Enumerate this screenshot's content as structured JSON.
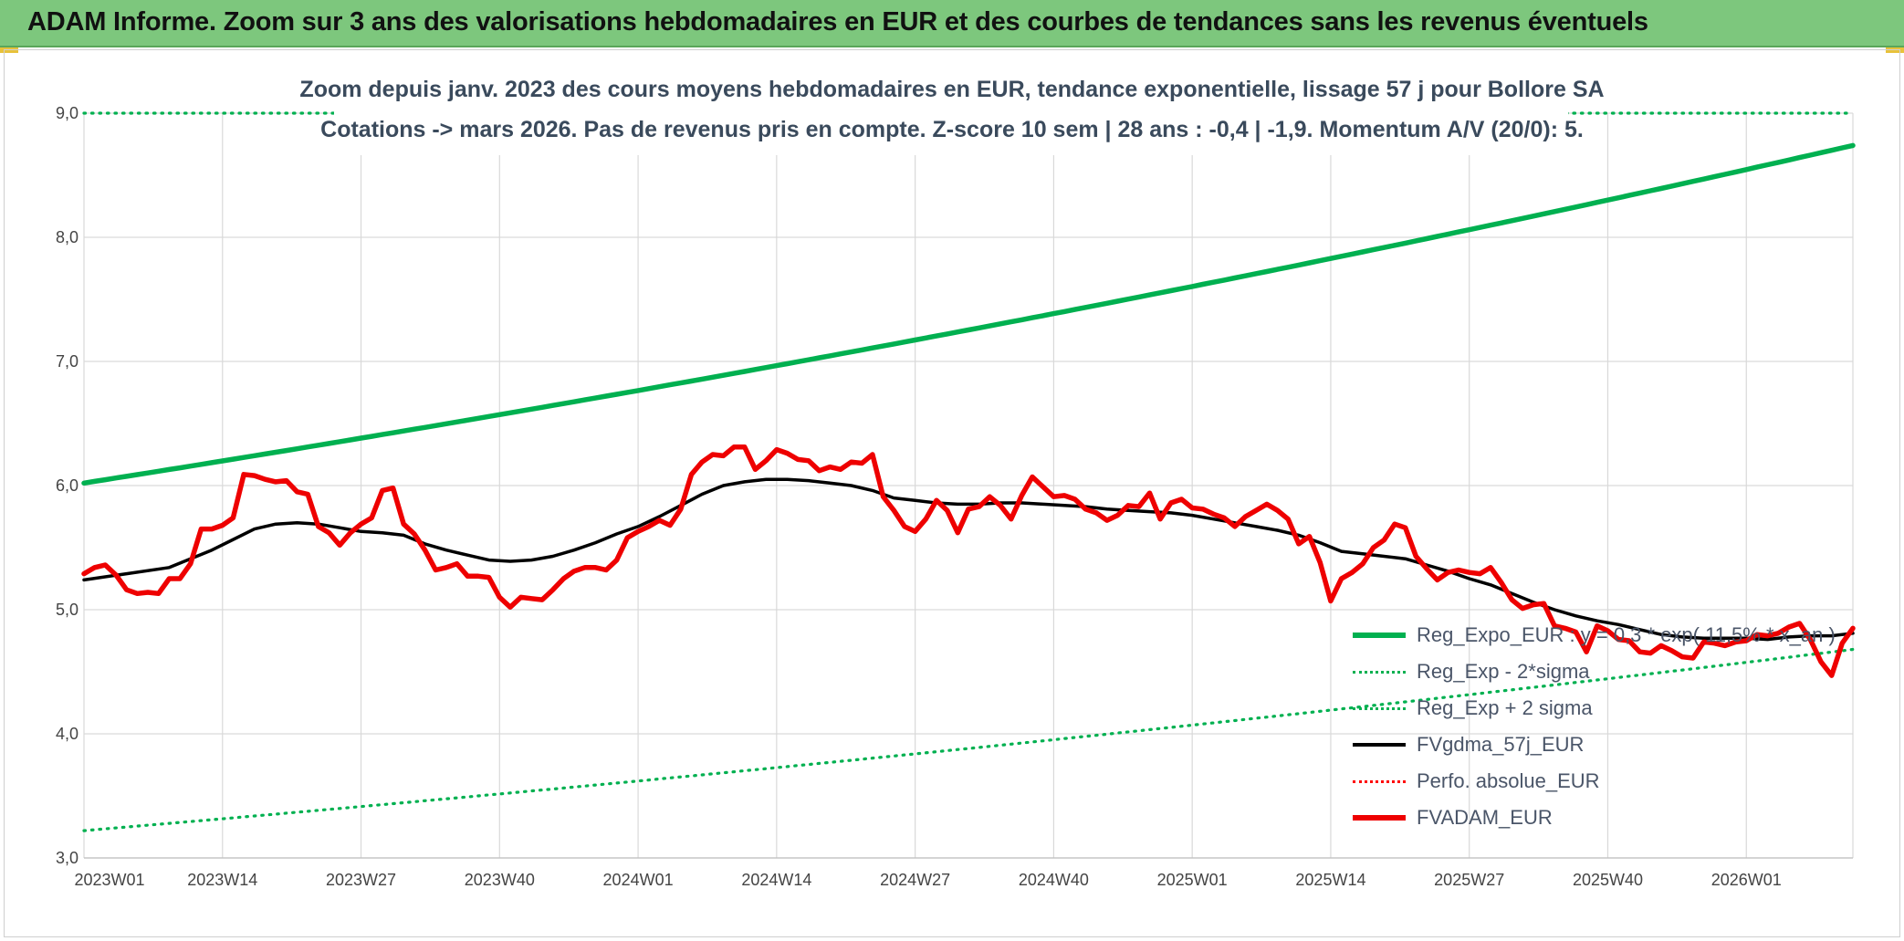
{
  "banner": {
    "title": "ADAM Informe. Zoom sur 3 ans des valorisations hebdomadaires en EUR et des courbes de tendances sans les revenus éventuels"
  },
  "chart_data": {
    "type": "line",
    "title_line1": "Zoom depuis janv. 2023 des cours moyens hebdomadaires en EUR, tendance exponentielle, lissage 57 j pour Bollore SA",
    "title_line2": "Cotations -> mars 2026. Pas de revenus pris en compte. Z-score 10 sem | 28 ans : -0,4 | -1,9. Momentum A/V (20/0): 5.",
    "ylim": [
      3.0,
      9.0
    ],
    "yticks": [
      "3,0",
      "4,0",
      "5,0",
      "6,0",
      "7,0",
      "8,0",
      "9,0"
    ],
    "x_range": [
      0,
      166
    ],
    "xticks": [
      {
        "index": 0,
        "label": "2023W01"
      },
      {
        "index": 13,
        "label": "2023W14"
      },
      {
        "index": 26,
        "label": "2023W27"
      },
      {
        "index": 39,
        "label": "2023W40"
      },
      {
        "index": 52,
        "label": "2024W01"
      },
      {
        "index": 65,
        "label": "2024W14"
      },
      {
        "index": 78,
        "label": "2024W27"
      },
      {
        "index": 91,
        "label": "2024W40"
      },
      {
        "index": 104,
        "label": "2025W01"
      },
      {
        "index": 117,
        "label": "2025W14"
      },
      {
        "index": 130,
        "label": "2025W27"
      },
      {
        "index": 143,
        "label": "2025W40"
      },
      {
        "index": 156,
        "label": "2026W01"
      }
    ],
    "grid": true,
    "legend_position": "bottom-right",
    "series": [
      {
        "name": "Reg_Expo_EUR : y = 0,3 * exp( 11,5% * x_an )",
        "color": "#00b050",
        "style": "solid-thick",
        "x": [
          0,
          166
        ],
        "y_start": 6.02,
        "y_end": 8.74,
        "shape": "exponential"
      },
      {
        "name": "Reg_Exp - 2*sigma",
        "color": "#00b050",
        "style": "dotted",
        "x": [
          0,
          166
        ],
        "y_start": 3.22,
        "y_end": 4.68,
        "shape": "exponential"
      },
      {
        "name": "Reg_Exp + 2 sigma",
        "color": "#00b050",
        "style": "dotted",
        "x": [
          0,
          166
        ],
        "y": [
          9.0,
          9.0
        ]
      },
      {
        "name": "FVgdma_57j_EUR",
        "color": "#000000",
        "style": "solid",
        "points": [
          [
            0,
            5.24
          ],
          [
            4,
            5.29
          ],
          [
            8,
            5.34
          ],
          [
            12,
            5.48
          ],
          [
            16,
            5.65
          ],
          [
            18,
            5.69
          ],
          [
            20,
            5.7
          ],
          [
            22,
            5.69
          ],
          [
            24,
            5.66
          ],
          [
            26,
            5.63
          ],
          [
            28,
            5.62
          ],
          [
            30,
            5.6
          ],
          [
            32,
            5.53
          ],
          [
            34,
            5.48
          ],
          [
            36,
            5.44
          ],
          [
            38,
            5.4
          ],
          [
            40,
            5.39
          ],
          [
            42,
            5.4
          ],
          [
            44,
            5.43
          ],
          [
            46,
            5.48
          ],
          [
            48,
            5.54
          ],
          [
            50,
            5.61
          ],
          [
            52,
            5.67
          ],
          [
            54,
            5.75
          ],
          [
            56,
            5.84
          ],
          [
            58,
            5.93
          ],
          [
            60,
            6.0
          ],
          [
            62,
            6.03
          ],
          [
            64,
            6.05
          ],
          [
            66,
            6.05
          ],
          [
            68,
            6.04
          ],
          [
            70,
            6.02
          ],
          [
            72,
            6.0
          ],
          [
            74,
            5.96
          ],
          [
            76,
            5.9
          ],
          [
            78,
            5.88
          ],
          [
            80,
            5.86
          ],
          [
            82,
            5.85
          ],
          [
            84,
            5.85
          ],
          [
            86,
            5.86
          ],
          [
            88,
            5.86
          ],
          [
            90,
            5.85
          ],
          [
            92,
            5.84
          ],
          [
            94,
            5.83
          ],
          [
            96,
            5.81
          ],
          [
            98,
            5.8
          ],
          [
            100,
            5.79
          ],
          [
            102,
            5.78
          ],
          [
            104,
            5.76
          ],
          [
            106,
            5.73
          ],
          [
            108,
            5.7
          ],
          [
            110,
            5.67
          ],
          [
            112,
            5.64
          ],
          [
            114,
            5.6
          ],
          [
            116,
            5.54
          ],
          [
            118,
            5.47
          ],
          [
            120,
            5.45
          ],
          [
            122,
            5.43
          ],
          [
            124,
            5.41
          ],
          [
            126,
            5.36
          ],
          [
            128,
            5.31
          ],
          [
            130,
            5.25
          ],
          [
            132,
            5.2
          ],
          [
            134,
            5.13
          ],
          [
            136,
            5.06
          ],
          [
            138,
            5.0
          ],
          [
            140,
            4.95
          ],
          [
            142,
            4.91
          ],
          [
            144,
            4.88
          ],
          [
            146,
            4.84
          ],
          [
            148,
            4.8
          ],
          [
            150,
            4.78
          ],
          [
            152,
            4.77
          ],
          [
            154,
            4.77
          ],
          [
            156,
            4.77
          ],
          [
            158,
            4.76
          ],
          [
            160,
            4.78
          ],
          [
            162,
            4.79
          ],
          [
            164,
            4.79
          ],
          [
            166,
            4.81
          ]
        ]
      },
      {
        "name": "Perfo. absolue_EUR",
        "color": "#ff0000",
        "style": "dotted",
        "points": []
      },
      {
        "name": "FVADAM_EUR",
        "color": "#ee0000",
        "style": "solid-thick",
        "points": [
          [
            0,
            5.29
          ],
          [
            1,
            5.34
          ],
          [
            2,
            5.36
          ],
          [
            3,
            5.28
          ],
          [
            4,
            5.16
          ],
          [
            5,
            5.13
          ],
          [
            6,
            5.14
          ],
          [
            7,
            5.13
          ],
          [
            8,
            5.25
          ],
          [
            9,
            5.25
          ],
          [
            10,
            5.37
          ],
          [
            11,
            5.65
          ],
          [
            12,
            5.65
          ],
          [
            13,
            5.68
          ],
          [
            14,
            5.74
          ],
          [
            15,
            6.09
          ],
          [
            16,
            6.08
          ],
          [
            17,
            6.05
          ],
          [
            18,
            6.03
          ],
          [
            19,
            6.04
          ],
          [
            20,
            5.95
          ],
          [
            21,
            5.93
          ],
          [
            22,
            5.67
          ],
          [
            23,
            5.62
          ],
          [
            24,
            5.52
          ],
          [
            25,
            5.62
          ],
          [
            26,
            5.69
          ],
          [
            27,
            5.74
          ],
          [
            28,
            5.96
          ],
          [
            29,
            5.98
          ],
          [
            30,
            5.69
          ],
          [
            31,
            5.61
          ],
          [
            32,
            5.48
          ],
          [
            33,
            5.32
          ],
          [
            34,
            5.34
          ],
          [
            35,
            5.37
          ],
          [
            36,
            5.27
          ],
          [
            37,
            5.27
          ],
          [
            38,
            5.26
          ],
          [
            39,
            5.1
          ],
          [
            40,
            5.02
          ],
          [
            41,
            5.1
          ],
          [
            42,
            5.09
          ],
          [
            43,
            5.08
          ],
          [
            44,
            5.16
          ],
          [
            45,
            5.25
          ],
          [
            46,
            5.31
          ],
          [
            47,
            5.34
          ],
          [
            48,
            5.34
          ],
          [
            49,
            5.32
          ],
          [
            50,
            5.4
          ],
          [
            51,
            5.58
          ],
          [
            52,
            5.63
          ],
          [
            53,
            5.67
          ],
          [
            54,
            5.72
          ],
          [
            55,
            5.68
          ],
          [
            56,
            5.81
          ],
          [
            57,
            6.09
          ],
          [
            58,
            6.19
          ],
          [
            59,
            6.25
          ],
          [
            60,
            6.24
          ],
          [
            61,
            6.31
          ],
          [
            62,
            6.31
          ],
          [
            63,
            6.13
          ],
          [
            64,
            6.2
          ],
          [
            65,
            6.29
          ],
          [
            66,
            6.26
          ],
          [
            67,
            6.21
          ],
          [
            68,
            6.2
          ],
          [
            69,
            6.12
          ],
          [
            70,
            6.15
          ],
          [
            71,
            6.13
          ],
          [
            72,
            6.19
          ],
          [
            73,
            6.18
          ],
          [
            74,
            6.25
          ],
          [
            75,
            5.91
          ],
          [
            76,
            5.8
          ],
          [
            77,
            5.67
          ],
          [
            78,
            5.63
          ],
          [
            79,
            5.73
          ],
          [
            80,
            5.88
          ],
          [
            81,
            5.8
          ],
          [
            82,
            5.62
          ],
          [
            83,
            5.81
          ],
          [
            84,
            5.83
          ],
          [
            85,
            5.91
          ],
          [
            86,
            5.84
          ],
          [
            87,
            5.73
          ],
          [
            88,
            5.92
          ],
          [
            89,
            6.07
          ],
          [
            90,
            5.99
          ],
          [
            91,
            5.91
          ],
          [
            92,
            5.92
          ],
          [
            93,
            5.89
          ],
          [
            94,
            5.81
          ],
          [
            95,
            5.78
          ],
          [
            96,
            5.72
          ],
          [
            97,
            5.76
          ],
          [
            98,
            5.84
          ],
          [
            99,
            5.83
          ],
          [
            100,
            5.94
          ],
          [
            101,
            5.73
          ],
          [
            102,
            5.86
          ],
          [
            103,
            5.89
          ],
          [
            104,
            5.82
          ],
          [
            105,
            5.81
          ],
          [
            106,
            5.77
          ],
          [
            107,
            5.74
          ],
          [
            108,
            5.67
          ],
          [
            109,
            5.75
          ],
          [
            110,
            5.8
          ],
          [
            111,
            5.85
          ],
          [
            112,
            5.8
          ],
          [
            113,
            5.73
          ],
          [
            114,
            5.53
          ],
          [
            115,
            5.59
          ],
          [
            116,
            5.38
          ],
          [
            117,
            5.07
          ],
          [
            118,
            5.25
          ],
          [
            119,
            5.3
          ],
          [
            120,
            5.37
          ],
          [
            121,
            5.5
          ],
          [
            122,
            5.56
          ],
          [
            123,
            5.69
          ],
          [
            124,
            5.66
          ],
          [
            125,
            5.43
          ],
          [
            126,
            5.33
          ],
          [
            127,
            5.24
          ],
          [
            128,
            5.3
          ],
          [
            129,
            5.32
          ],
          [
            130,
            5.3
          ],
          [
            131,
            5.29
          ],
          [
            132,
            5.34
          ],
          [
            133,
            5.22
          ],
          [
            134,
            5.08
          ],
          [
            135,
            5.01
          ],
          [
            136,
            5.04
          ],
          [
            137,
            5.05
          ],
          [
            138,
            4.87
          ],
          [
            139,
            4.85
          ],
          [
            140,
            4.82
          ],
          [
            141,
            4.66
          ],
          [
            142,
            4.87
          ],
          [
            143,
            4.83
          ],
          [
            144,
            4.76
          ],
          [
            145,
            4.75
          ],
          [
            146,
            4.66
          ],
          [
            147,
            4.65
          ],
          [
            148,
            4.71
          ],
          [
            149,
            4.67
          ],
          [
            150,
            4.62
          ],
          [
            151,
            4.61
          ],
          [
            152,
            4.74
          ],
          [
            153,
            4.73
          ],
          [
            154,
            4.71
          ],
          [
            155,
            4.74
          ],
          [
            156,
            4.75
          ],
          [
            157,
            4.8
          ],
          [
            158,
            4.79
          ],
          [
            159,
            4.81
          ],
          [
            160,
            4.86
          ],
          [
            161,
            4.89
          ],
          [
            162,
            4.76
          ],
          [
            163,
            4.58
          ],
          [
            164,
            4.47
          ],
          [
            165,
            4.73
          ],
          [
            166,
            4.85
          ]
        ]
      }
    ]
  },
  "legend": {
    "items": [
      {
        "label": "Reg_Expo_EUR : y = 0,3 * exp( 11,5% * x_an )",
        "color": "#00b050",
        "style": "thick"
      },
      {
        "label": "Reg_Exp - 2*sigma",
        "color": "#00b050",
        "style": "dotted"
      },
      {
        "label": "Reg_Exp + 2 sigma",
        "color": "#00b050",
        "style": "dotted"
      },
      {
        "label": "FVgdma_57j_EUR",
        "color": "#000000",
        "style": "solid"
      },
      {
        "label": "Perfo. absolue_EUR",
        "color": "#ff0000",
        "style": "dotted"
      },
      {
        "label": "FVADAM_EUR",
        "color": "#ee0000",
        "style": "thick"
      }
    ]
  }
}
